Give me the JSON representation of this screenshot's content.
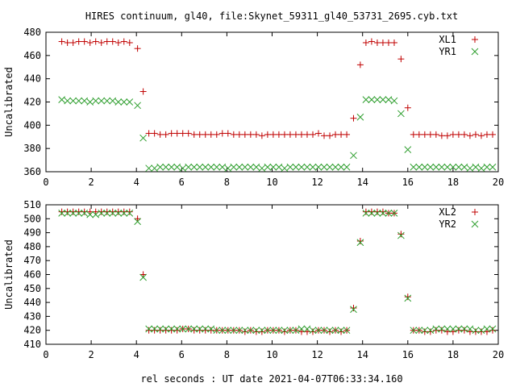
{
  "title": "HIRES continuum, gl40, file:Skynet_59311_gl40_53731_2695.cyb.txt",
  "colors": {
    "plus": "#c00000",
    "cross": "#2e9e2e"
  },
  "chart_data": [
    {
      "type": "scatter",
      "title": "HIRES continuum, gl40, file:Skynet_59311_gl40_53731_2695.cyb.txt",
      "xlabel": "",
      "ylabel": "Uncalibrated",
      "xlim": [
        0,
        20
      ],
      "ylim": [
        360,
        480
      ],
      "xticks": [
        0,
        2,
        4,
        6,
        8,
        10,
        12,
        14,
        16,
        18,
        20
      ],
      "yticks": [
        360,
        380,
        400,
        420,
        440,
        460,
        480
      ],
      "legend_position": "top-right",
      "grid": false,
      "x": [
        0.7,
        0.95,
        1.2,
        1.45,
        1.7,
        1.95,
        2.2,
        2.45,
        2.7,
        2.95,
        3.2,
        3.45,
        3.7,
        4.05,
        4.3,
        4.55,
        4.8,
        5.05,
        5.3,
        5.55,
        5.8,
        6.05,
        6.3,
        6.55,
        6.8,
        7.05,
        7.3,
        7.55,
        7.8,
        8.05,
        8.3,
        8.55,
        8.8,
        9.05,
        9.3,
        9.55,
        9.8,
        10.05,
        10.3,
        10.55,
        10.8,
        11.05,
        11.3,
        11.55,
        11.8,
        12.05,
        12.3,
        12.55,
        12.8,
        13.05,
        13.3,
        13.6,
        13.9,
        14.15,
        14.4,
        14.65,
        14.9,
        15.15,
        15.4,
        15.7,
        16.0,
        16.25,
        16.5,
        16.75,
        17.0,
        17.25,
        17.5,
        17.75,
        18.0,
        18.25,
        18.5,
        18.75,
        19.0,
        19.25,
        19.5,
        19.75
      ],
      "series": [
        {
          "name": "XL1",
          "marker": "plus",
          "values": [
            472,
            471,
            471,
            472,
            472,
            471,
            472,
            471,
            472,
            472,
            471,
            472,
            471,
            466,
            429,
            393,
            393,
            392,
            392,
            393,
            393,
            393,
            393,
            392,
            392,
            392,
            392,
            392,
            393,
            393,
            392,
            392,
            392,
            392,
            392,
            391,
            392,
            392,
            392,
            392,
            392,
            392,
            392,
            392,
            392,
            393,
            391,
            391,
            392,
            392,
            392,
            406,
            452,
            471,
            472,
            471,
            471,
            471,
            471,
            457,
            415,
            392,
            392,
            392,
            392,
            392,
            391,
            391,
            392,
            392,
            392,
            391,
            392,
            391,
            392,
            392
          ]
        },
        {
          "name": "YR1",
          "marker": "cross",
          "values": [
            422,
            421,
            421,
            421,
            421,
            420,
            421,
            421,
            421,
            421,
            420,
            420,
            420,
            417,
            389,
            363,
            363,
            364,
            364,
            364,
            364,
            363,
            364,
            364,
            364,
            364,
            364,
            364,
            364,
            363,
            364,
            364,
            364,
            364,
            364,
            363,
            364,
            364,
            364,
            363,
            364,
            364,
            364,
            364,
            364,
            364,
            364,
            364,
            364,
            364,
            364,
            374,
            407,
            422,
            422,
            422,
            422,
            422,
            421,
            410,
            379,
            364,
            364,
            364,
            364,
            364,
            364,
            364,
            364,
            364,
            364,
            363,
            364,
            363,
            364,
            364
          ]
        }
      ]
    },
    {
      "type": "scatter",
      "title": "",
      "xlabel": "rel seconds : UT date 2021-04-07T06:33:34.160",
      "ylabel": "Uncalibrated",
      "xlim": [
        0,
        20
      ],
      "ylim": [
        410,
        510
      ],
      "xticks": [
        0,
        2,
        4,
        6,
        8,
        10,
        12,
        14,
        16,
        18,
        20
      ],
      "yticks": [
        410,
        420,
        430,
        440,
        450,
        460,
        470,
        480,
        490,
        500,
        510
      ],
      "legend_position": "top-right",
      "grid": false,
      "x": [
        0.7,
        0.95,
        1.2,
        1.45,
        1.7,
        1.95,
        2.2,
        2.45,
        2.7,
        2.95,
        3.2,
        3.45,
        3.7,
        4.05,
        4.3,
        4.55,
        4.8,
        5.05,
        5.3,
        5.55,
        5.8,
        6.05,
        6.3,
        6.55,
        6.8,
        7.05,
        7.3,
        7.55,
        7.8,
        8.05,
        8.3,
        8.55,
        8.8,
        9.05,
        9.3,
        9.55,
        9.8,
        10.05,
        10.3,
        10.55,
        10.8,
        11.05,
        11.3,
        11.55,
        11.8,
        12.05,
        12.3,
        12.55,
        12.8,
        13.05,
        13.3,
        13.6,
        13.9,
        14.15,
        14.4,
        14.65,
        14.9,
        15.15,
        15.4,
        15.7,
        16.0,
        16.25,
        16.5,
        16.75,
        17.0,
        17.25,
        17.5,
        17.75,
        18.0,
        18.25,
        18.5,
        18.75,
        19.0,
        19.25,
        19.5,
        19.75
      ],
      "series": [
        {
          "name": "XL2",
          "marker": "plus",
          "values": [
            505,
            505,
            505,
            505,
            505,
            505,
            505,
            505,
            505,
            505,
            505,
            505,
            505,
            500,
            460,
            420,
            420,
            420,
            420,
            420,
            420,
            421,
            421,
            420,
            420,
            420,
            420,
            420,
            420,
            420,
            420,
            420,
            419,
            420,
            419,
            419,
            420,
            420,
            420,
            419,
            420,
            420,
            419,
            419,
            419,
            420,
            420,
            419,
            420,
            419,
            420,
            436,
            484,
            505,
            505,
            505,
            505,
            504,
            504,
            489,
            444,
            420,
            420,
            419,
            419,
            420,
            420,
            419,
            419,
            420,
            420,
            419,
            419,
            419,
            419,
            420
          ]
        },
        {
          "name": "YR2",
          "marker": "cross",
          "values": [
            504,
            504,
            504,
            504,
            504,
            503,
            503,
            504,
            504,
            504,
            504,
            504,
            504,
            498,
            458,
            421,
            421,
            421,
            421,
            421,
            421,
            421,
            421,
            421,
            421,
            421,
            421,
            420,
            420,
            420,
            420,
            420,
            420,
            420,
            420,
            420,
            420,
            420,
            420,
            420,
            420,
            420,
            421,
            421,
            420,
            420,
            420,
            420,
            420,
            420,
            420,
            435,
            483,
            504,
            504,
            504,
            504,
            504,
            504,
            488,
            443,
            420,
            420,
            420,
            420,
            421,
            421,
            421,
            421,
            421,
            421,
            421,
            420,
            420,
            421,
            421
          ]
        }
      ]
    }
  ]
}
